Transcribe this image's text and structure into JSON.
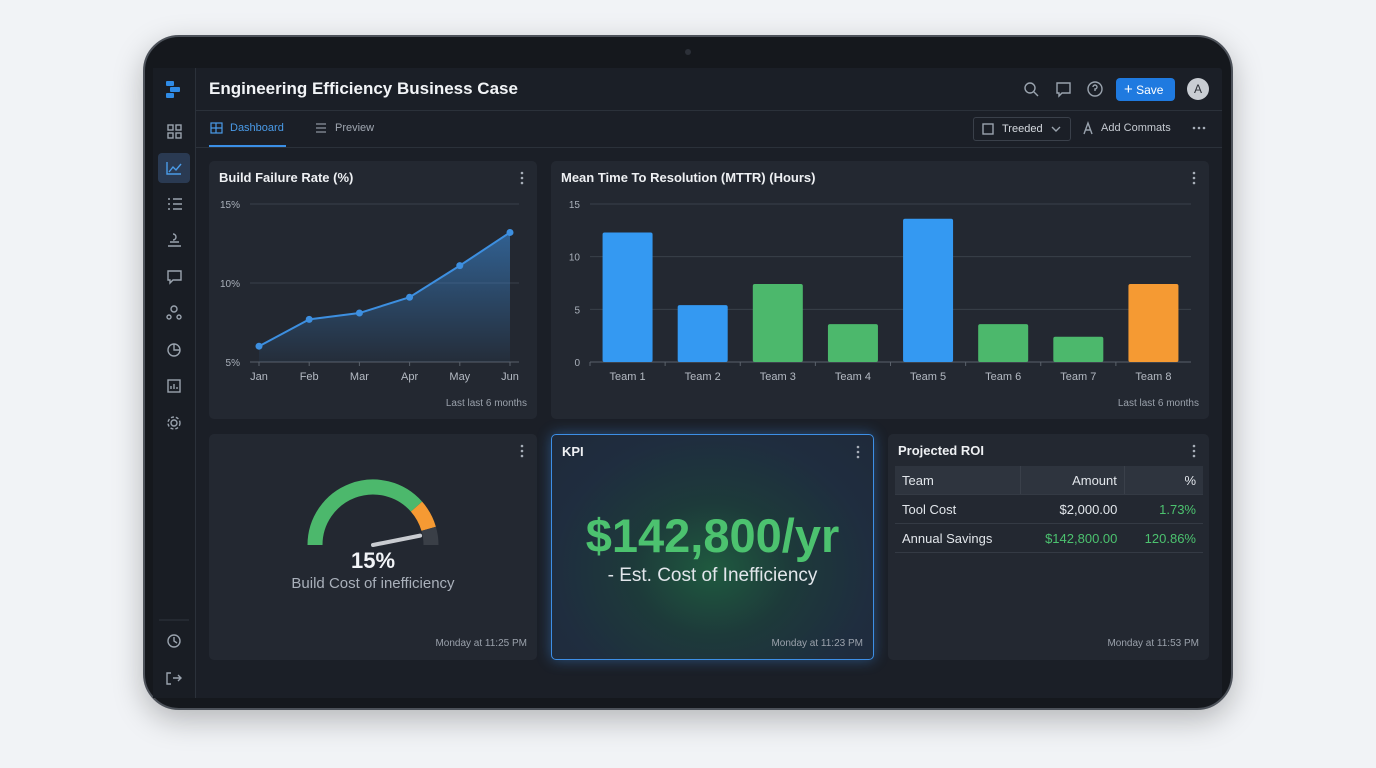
{
  "header": {
    "title": "Engineering Efficiency Business Case",
    "save": "Save",
    "avatar": "A"
  },
  "tabs": [
    "Dashboard",
    "Preview"
  ],
  "toolbar": {
    "filter": "Treeded",
    "add": "Add Commats"
  },
  "chart_data": [
    {
      "type": "line",
      "title": "Build Failure Rate (%)",
      "categories": [
        "Jan",
        "Feb",
        "Mar",
        "Apr",
        "May",
        "Jun"
      ],
      "values": [
        6.0,
        7.7,
        8.1,
        9.1,
        11.1,
        13.2
      ],
      "color": "#3d8fe0",
      "ylim": [
        5,
        15
      ],
      "yticks": [
        {
          "value": 5,
          "label": "5%"
        },
        {
          "value": 10,
          "label": "10%"
        },
        {
          "value": 15,
          "label": "15%"
        }
      ],
      "grid": true,
      "note": "Last last 6 months"
    },
    {
      "type": "bar",
      "title": "Mean Time To Resolution (MTTR) (Hours)",
      "categories": [
        "Team 1",
        "Team 2",
        "Team 3",
        "Team 4",
        "Team 5",
        "Team 6",
        "Team 7",
        "Team 8"
      ],
      "values": [
        12.3,
        5.4,
        7.4,
        3.6,
        13.6,
        3.6,
        2.4,
        7.4
      ],
      "colors": [
        "#3499f2",
        "#3499f2",
        "#4cb86c",
        "#4cb86c",
        "#3499f2",
        "#4cb86c",
        "#4cb86c",
        "#f59a33"
      ],
      "ylim": [
        0,
        15
      ],
      "yticks": [
        0,
        5,
        10,
        15
      ],
      "grid": true,
      "note": "Last last 6 months"
    }
  ],
  "gauge": {
    "value": 15,
    "label": "15%",
    "lim": [
      0,
      16
    ],
    "caption": "Build Cost of inefficiency",
    "timestamp": "Monday at 11:25 PM"
  },
  "kpi": {
    "title": "KPI",
    "value": "$142,800/yr",
    "caption": "- Est. Cost of Inefficiency",
    "timestamp": "Monday at 11:23 PM"
  },
  "roi": {
    "title": "Projected ROI",
    "header": [
      "Team",
      "Amount",
      "%"
    ],
    "rows": [
      [
        "Tool Cost",
        "$2,000.00",
        "1.73%"
      ],
      [
        "Annual Savings",
        "$142,800.00",
        "120.86%"
      ]
    ],
    "timestamp": "Monday at 11:53 PM"
  }
}
